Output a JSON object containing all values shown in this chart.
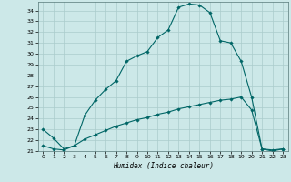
{
  "xlabel": "Humidex (Indice chaleur)",
  "bg_color": "#cce8e8",
  "grid_color": "#aacccc",
  "line_color": "#006666",
  "xlim": [
    -0.5,
    23.5
  ],
  "ylim": [
    21,
    34.8
  ],
  "yticks": [
    21,
    22,
    23,
    24,
    25,
    26,
    27,
    28,
    29,
    30,
    31,
    32,
    33,
    34
  ],
  "xticks": [
    0,
    1,
    2,
    3,
    4,
    5,
    6,
    7,
    8,
    9,
    10,
    11,
    12,
    13,
    14,
    15,
    16,
    17,
    18,
    19,
    20,
    21,
    22,
    23
  ],
  "curve1_x": [
    0,
    1,
    2,
    3,
    4,
    5,
    6,
    7,
    8,
    9,
    10,
    11,
    12,
    13,
    14,
    15,
    16,
    17,
    18,
    19,
    20,
    21,
    22,
    23
  ],
  "curve1_y": [
    23.0,
    22.2,
    21.2,
    21.5,
    24.3,
    25.7,
    26.7,
    27.5,
    29.3,
    29.8,
    30.2,
    31.5,
    32.2,
    34.3,
    34.6,
    34.5,
    33.8,
    31.2,
    31.0,
    29.3,
    26.0,
    21.2,
    21.0,
    21.2
  ],
  "curve2_x": [
    0,
    1,
    2,
    3,
    4,
    5,
    6,
    7,
    8,
    9,
    10,
    11,
    12,
    13,
    14,
    15,
    16,
    17,
    18,
    19,
    20,
    21,
    22,
    23
  ],
  "curve2_y": [
    21.5,
    21.2,
    21.1,
    21.5,
    22.1,
    22.5,
    22.9,
    23.3,
    23.6,
    23.9,
    24.1,
    24.4,
    24.6,
    24.9,
    25.1,
    25.3,
    25.5,
    25.7,
    25.8,
    26.0,
    24.8,
    21.2,
    21.1,
    21.2
  ]
}
